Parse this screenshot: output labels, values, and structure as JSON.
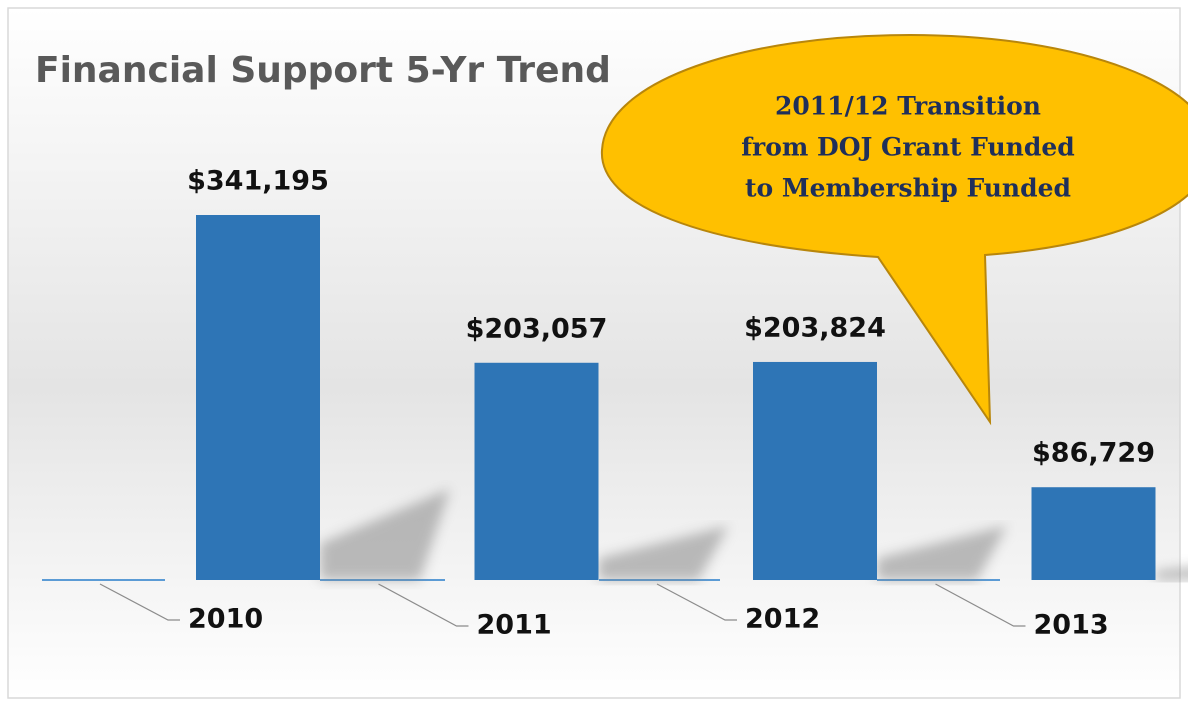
{
  "chart_data": {
    "type": "bar",
    "title": "Financial Support 5-Yr Trend",
    "categories": [
      "2010",
      "2011",
      "2012",
      "2013"
    ],
    "values": [
      341195,
      203057,
      203824,
      86729
    ],
    "value_labels": [
      "$341,195",
      "$203,057",
      "$203,824",
      "$86,729"
    ],
    "color": "#2e75b6",
    "annotation": [
      "2011/12 Transition",
      "from DOJ Grant Funded",
      "to Membership Funded"
    ]
  }
}
